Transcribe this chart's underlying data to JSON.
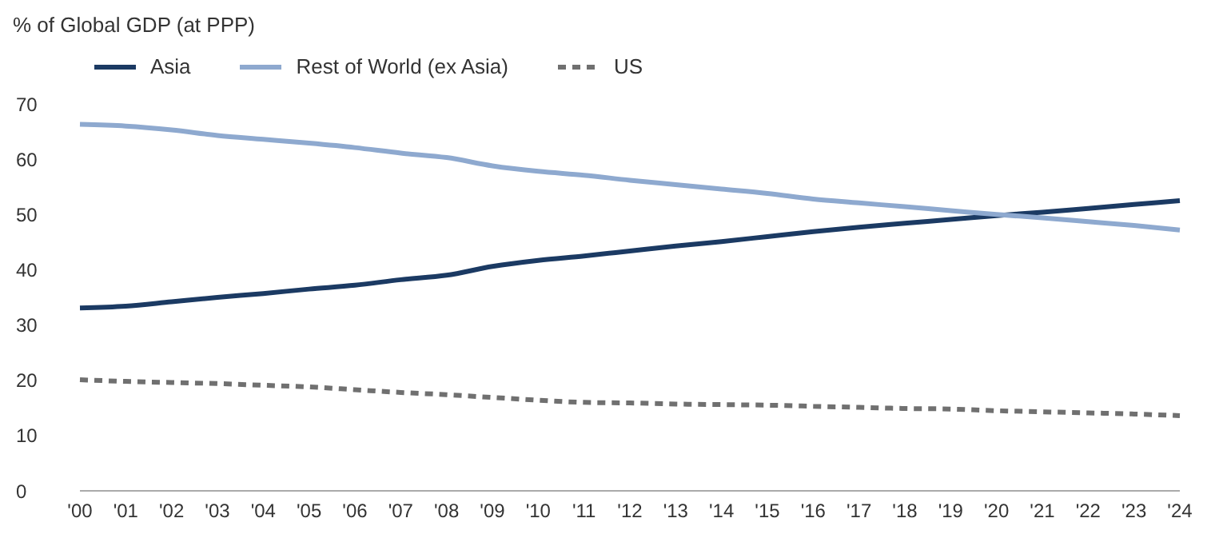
{
  "chart_data": {
    "type": "line",
    "ylabel": "% of Global GDP (at PPP)",
    "categories": [
      "'00",
      "'01",
      "'02",
      "'03",
      "'04",
      "'05",
      "'06",
      "'07",
      "'08",
      "'09",
      "'10",
      "'11",
      "'12",
      "'13",
      "'14",
      "'15",
      "'16",
      "'17",
      "'18",
      "'19",
      "'20",
      "'21",
      "'22",
      "'23",
      "'24"
    ],
    "series": [
      {
        "name": "Asia",
        "color": "#1b3a63",
        "line_style": "solid",
        "values": [
          33.1,
          33.4,
          34.2,
          35.0,
          35.7,
          36.5,
          37.2,
          38.2,
          39.0,
          40.6,
          41.7,
          42.5,
          43.4,
          44.3,
          45.1,
          46.0,
          46.9,
          47.7,
          48.4,
          49.1,
          49.8,
          50.4,
          51.1,
          51.8,
          52.5
        ]
      },
      {
        "name": "Rest of World (ex Asia)",
        "color": "#8ea9cf",
        "line_style": "solid",
        "values": [
          66.3,
          66.0,
          65.3,
          64.3,
          63.6,
          62.9,
          62.1,
          61.1,
          60.3,
          58.8,
          57.8,
          57.1,
          56.2,
          55.4,
          54.6,
          53.8,
          52.8,
          52.1,
          51.4,
          50.7,
          50.0,
          49.4,
          48.7,
          48.0,
          47.2
        ]
      },
      {
        "name": "US",
        "color": "#707070",
        "line_style": "dashed",
        "values": [
          20.1,
          19.8,
          19.6,
          19.4,
          19.1,
          18.8,
          18.3,
          17.8,
          17.4,
          16.9,
          16.4,
          16.0,
          15.9,
          15.7,
          15.6,
          15.5,
          15.3,
          15.1,
          14.9,
          14.8,
          14.5,
          14.3,
          14.1,
          13.9,
          13.6
        ]
      }
    ],
    "ylim": [
      0,
      70
    ],
    "yticks": [
      0,
      10,
      20,
      30,
      40,
      50,
      60,
      70
    ],
    "grid": false,
    "legend": "top left",
    "marker": "none"
  }
}
